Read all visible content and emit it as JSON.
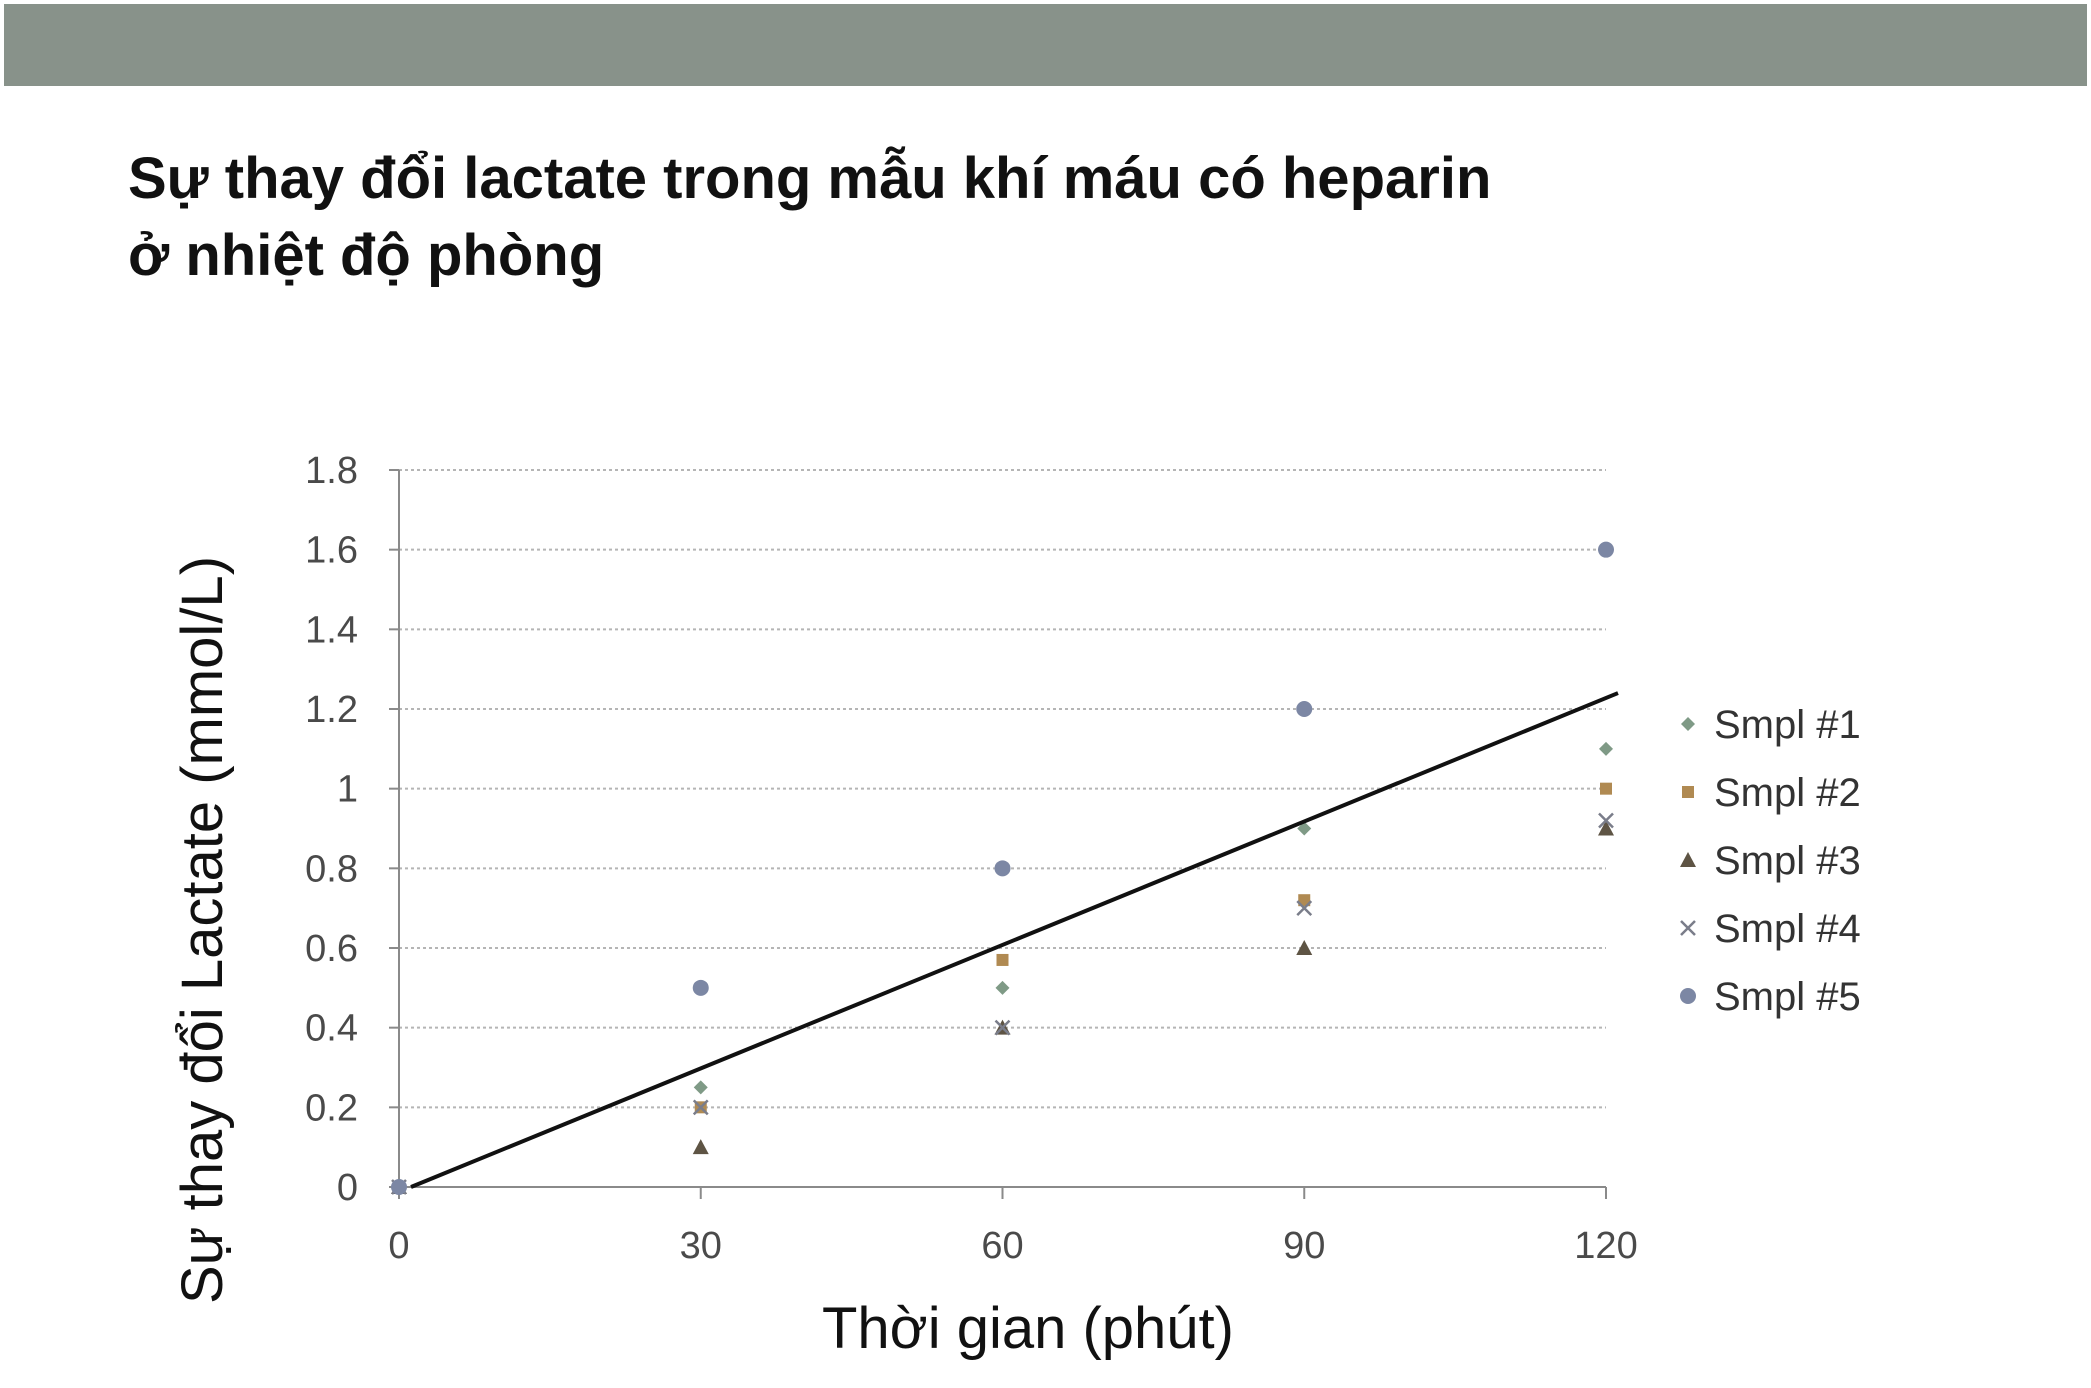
{
  "header": {
    "bar_color": "#88928a"
  },
  "slide": {
    "title_lines": [
      "Sự thay đổi lactate trong mẫu khí máu có heparin",
      "ở nhiệt độ phòng"
    ]
  },
  "chart_data": {
    "type": "scatter",
    "xlabel": "Thời gian (phút)",
    "ylabel": "Sự thay đổi Lactate (mmol/L)",
    "x_ticks": [
      "0",
      "30",
      "60",
      "90",
      "120"
    ],
    "y_ticks": [
      "0",
      "0.2",
      "0.4",
      "0.6",
      "0.8",
      "1",
      "1.2",
      "1.4",
      "1.6",
      "1.8"
    ],
    "xlim": [
      0,
      120
    ],
    "ylim": [
      0,
      1.8
    ],
    "grid": "horizontal dotted",
    "legend_position": "right",
    "x": [
      0,
      30,
      60,
      90,
      120
    ],
    "series": [
      {
        "name": "Smpl #1",
        "marker": "diamond",
        "color": "#7f9a86",
        "values": [
          0,
          0.25,
          0.5,
          0.9,
          1.1
        ]
      },
      {
        "name": "Smpl #2",
        "marker": "square",
        "color": "#b08a52",
        "values": [
          0,
          0.2,
          0.57,
          0.72,
          1.0
        ]
      },
      {
        "name": "Smpl #3",
        "marker": "triangle",
        "color": "#5e5444",
        "values": [
          0,
          0.1,
          0.4,
          0.6,
          0.9
        ]
      },
      {
        "name": "Smpl #4",
        "marker": "x",
        "color": "#7a7d8a",
        "values": [
          0,
          0.2,
          0.4,
          0.7,
          0.92
        ]
      },
      {
        "name": "Smpl #5",
        "marker": "circle",
        "color": "#7c87a4",
        "values": [
          0,
          0.5,
          0.8,
          1.2,
          1.6
        ]
      }
    ],
    "trendline": {
      "color": "#111111",
      "x": [
        0,
        120
      ],
      "y": [
        0,
        1.24
      ]
    }
  }
}
